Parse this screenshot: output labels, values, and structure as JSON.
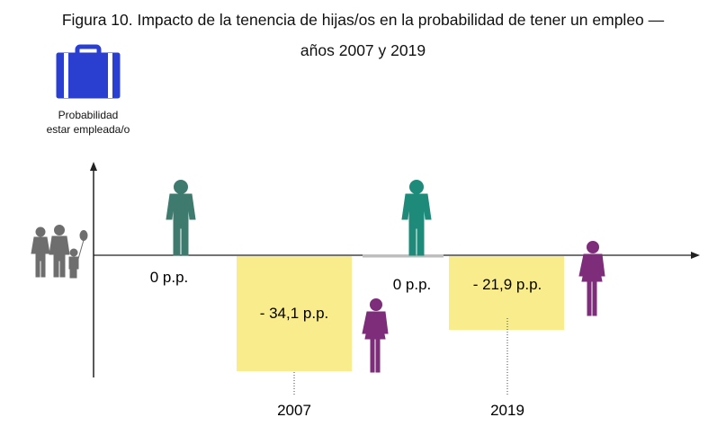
{
  "title_line1": "Figura 10. Impacto de la tenencia de hijas/os en la probabilidad de tener un empleo —",
  "title_line2": "años 2007 y 2019",
  "legend": {
    "icon": "briefcase-icon",
    "label_line1": "Probabilidad",
    "label_line2": "estar empleada/o"
  },
  "colors": {
    "briefcase": "#2a3fd0",
    "bar": "#f9ec8c",
    "man": "#3f7a6e",
    "man_2019": "#1e8a7a",
    "woman": "#7d2d79",
    "family": "#6e6e6e",
    "axis": "#222222"
  },
  "chart_data": {
    "type": "bar",
    "categories": [
      "2007",
      "2019"
    ],
    "series": [
      {
        "name": "Hombres",
        "values": [
          0,
          0
        ],
        "labels": [
          "0 p.p.",
          "0 p.p."
        ]
      },
      {
        "name": "Mujeres",
        "values": [
          -34.1,
          -21.9
        ],
        "labels": [
          "- 34,1 p.p.",
          "- 21,9 p.p."
        ]
      }
    ],
    "title": "Figura 10. Impacto de la tenencia de hijas/os en la probabilidad de tener un empleo — años 2007 y 2019",
    "ylabel": "Probabilidad estar empleada/o",
    "unit": "p.p."
  }
}
